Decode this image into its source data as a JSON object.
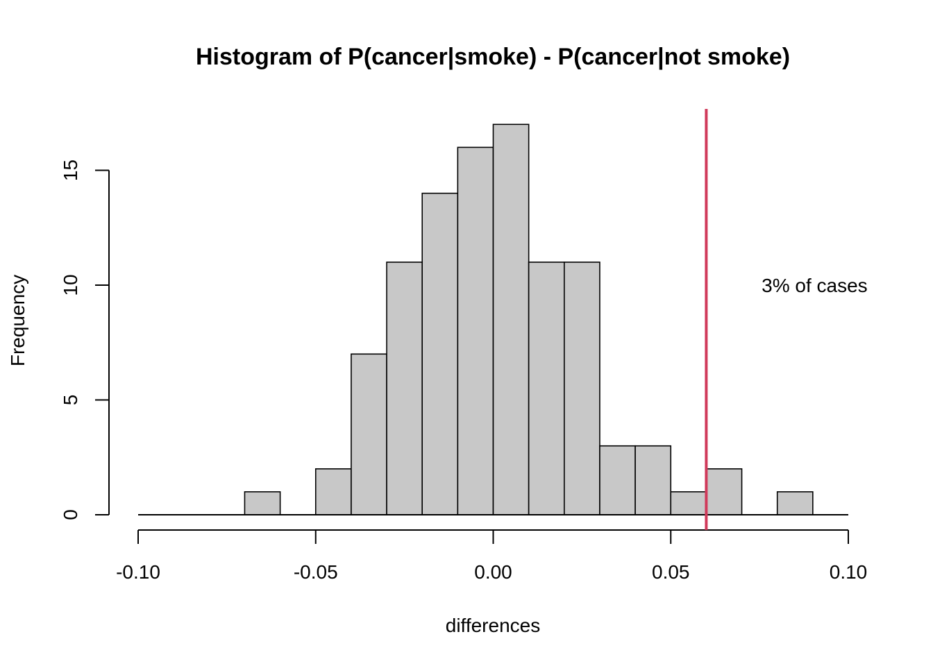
{
  "chart_data": {
    "type": "bar",
    "title": "Histogram of P(cancer|smoke) - P(cancer|not smoke)",
    "xlabel": "differences",
    "ylabel": "Frequency",
    "xlim": [
      -0.1,
      0.1
    ],
    "ylim": [
      0,
      17.6
    ],
    "x_ticks": [
      "-0.10",
      "-0.05",
      "0.00",
      "0.05",
      "0.10"
    ],
    "x_tick_values": [
      -0.1,
      -0.05,
      0.0,
      0.05,
      0.1
    ],
    "y_ticks": [
      "0",
      "5",
      "10",
      "15"
    ],
    "y_tick_values": [
      0,
      5,
      10,
      15
    ],
    "bin_edges": [
      -0.1,
      -0.09,
      -0.08,
      -0.07,
      -0.06,
      -0.05,
      -0.04,
      -0.03,
      -0.02,
      -0.01,
      0.0,
      0.01,
      0.02,
      0.03,
      0.04,
      0.05,
      0.06,
      0.07,
      0.08,
      0.09,
      0.1
    ],
    "values": [
      0,
      0,
      0,
      1,
      0,
      2,
      7,
      11,
      14,
      16,
      17,
      11,
      11,
      3,
      3,
      1,
      2,
      0,
      1,
      0
    ],
    "bar_color": "#C8C8C8",
    "reference_line": {
      "x": 0.06,
      "color": "#D03A5A"
    },
    "annotation": {
      "text": "3% of cases",
      "x": 0.0905,
      "y": 10
    },
    "grid": false
  }
}
